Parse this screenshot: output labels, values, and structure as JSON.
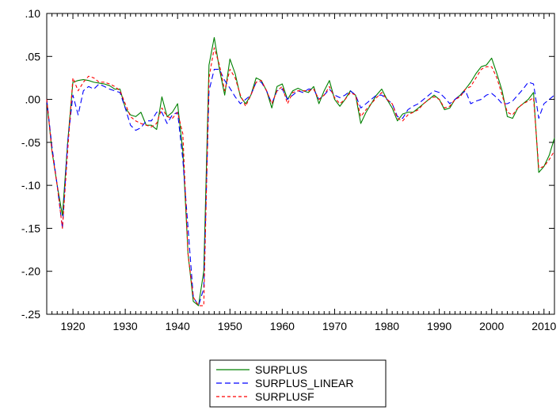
{
  "chart_data": {
    "type": "line",
    "xlim": [
      1915,
      2012
    ],
    "ylim": [
      -0.25,
      0.1
    ],
    "x_ticks": [
      1920,
      1930,
      1940,
      1950,
      1960,
      1970,
      1980,
      1990,
      2000,
      2010
    ],
    "x_tick_labels": [
      "1920",
      "1930",
      "1940",
      "1950",
      "1960",
      "1970",
      "1980",
      "1990",
      "2000",
      "2010"
    ],
    "y_ticks": [
      -0.25,
      -0.2,
      -0.15,
      -0.1,
      -0.05,
      0.0,
      0.05,
      0.1
    ],
    "y_tick_labels": [
      "-.25",
      "-.20",
      "-.15",
      "-.10",
      "-.05",
      ".00",
      ".05",
      ".10"
    ],
    "x": [
      1915,
      1916,
      1917,
      1918,
      1919,
      1920,
      1921,
      1922,
      1923,
      1924,
      1925,
      1926,
      1927,
      1928,
      1929,
      1930,
      1931,
      1932,
      1933,
      1934,
      1935,
      1936,
      1937,
      1938,
      1939,
      1940,
      1941,
      1942,
      1943,
      1944,
      1945,
      1946,
      1947,
      1948,
      1949,
      1950,
      1951,
      1952,
      1953,
      1954,
      1955,
      1956,
      1957,
      1958,
      1959,
      1960,
      1961,
      1962,
      1963,
      1964,
      1965,
      1966,
      1967,
      1968,
      1969,
      1970,
      1971,
      1972,
      1973,
      1974,
      1975,
      1976,
      1977,
      1978,
      1979,
      1980,
      1981,
      1982,
      1983,
      1984,
      1985,
      1986,
      1987,
      1988,
      1989,
      1990,
      1991,
      1992,
      1993,
      1994,
      1995,
      1996,
      1997,
      1998,
      1999,
      2000,
      2001,
      2002,
      2003,
      2004,
      2005,
      2006,
      2007,
      2008,
      2009,
      2010,
      2011,
      2012
    ],
    "series": [
      {
        "name": "SURPLUS",
        "color": "#008000",
        "dash": "",
        "values": [
          0.0,
          -0.06,
          -0.1,
          -0.135,
          -0.05,
          0.02,
          0.022,
          0.023,
          0.022,
          0.02,
          0.019,
          0.018,
          0.016,
          0.012,
          0.012,
          -0.01,
          -0.018,
          -0.02,
          -0.015,
          -0.03,
          -0.03,
          -0.035,
          0.003,
          -0.02,
          -0.015,
          -0.005,
          -0.06,
          -0.18,
          -0.235,
          -0.24,
          -0.2,
          0.04,
          0.072,
          0.035,
          0.005,
          0.047,
          0.03,
          0.003,
          -0.005,
          0.005,
          0.025,
          0.022,
          0.01,
          -0.01,
          0.015,
          0.018,
          0.0,
          0.01,
          0.013,
          0.01,
          0.008,
          0.015,
          -0.005,
          0.01,
          0.022,
          0.0,
          -0.008,
          0.0,
          0.01,
          0.005,
          -0.028,
          -0.015,
          -0.005,
          0.005,
          0.012,
          0.0,
          -0.01,
          -0.025,
          -0.017,
          -0.015,
          -0.015,
          -0.01,
          -0.005,
          0.0,
          0.005,
          0.0,
          -0.012,
          -0.01,
          0.0,
          0.005,
          0.012,
          0.02,
          0.03,
          0.038,
          0.04,
          0.048,
          0.03,
          0.01,
          -0.02,
          -0.022,
          -0.01,
          -0.005,
          0.0,
          0.008,
          -0.085,
          -0.078,
          -0.065,
          -0.045
        ]
      },
      {
        "name": "SURPLUS_LINEAR",
        "color": "#0000ff",
        "dash": "7,4",
        "values": [
          0.0,
          -0.055,
          -0.1,
          -0.15,
          -0.05,
          0.005,
          -0.018,
          0.01,
          0.015,
          0.012,
          0.018,
          0.015,
          0.012,
          0.01,
          0.008,
          -0.01,
          -0.03,
          -0.036,
          -0.033,
          -0.025,
          -0.025,
          -0.015,
          -0.015,
          -0.028,
          -0.018,
          -0.015,
          -0.07,
          -0.15,
          -0.23,
          -0.24,
          -0.22,
          0.01,
          0.035,
          0.035,
          0.022,
          0.013,
          0.003,
          -0.005,
          0.0,
          0.005,
          0.02,
          0.02,
          0.01,
          -0.005,
          0.01,
          0.012,
          0.0,
          0.005,
          0.01,
          0.008,
          0.012,
          0.012,
          0.0,
          0.005,
          0.012,
          0.005,
          0.002,
          0.005,
          0.01,
          0.005,
          -0.01,
          -0.005,
          0.0,
          0.005,
          0.005,
          0.0,
          -0.005,
          -0.02,
          -0.022,
          -0.012,
          -0.008,
          -0.005,
          0.0,
          0.005,
          0.01,
          0.008,
          0.002,
          -0.005,
          0.0,
          0.005,
          0.01,
          -0.005,
          -0.002,
          0.0,
          0.005,
          0.007,
          0.002,
          -0.005,
          -0.005,
          -0.002,
          0.005,
          0.012,
          0.02,
          0.018,
          -0.022,
          -0.005,
          0.0,
          0.005
        ]
      },
      {
        "name": "SURPLUSF",
        "color": "#ff0000",
        "dash": "4,3",
        "values": [
          0.0,
          -0.06,
          -0.1,
          -0.15,
          -0.06,
          0.025,
          0.01,
          0.02,
          0.027,
          0.025,
          0.02,
          0.02,
          0.018,
          0.015,
          0.01,
          -0.005,
          -0.02,
          -0.025,
          -0.028,
          -0.03,
          -0.032,
          -0.028,
          -0.01,
          -0.02,
          -0.022,
          -0.015,
          -0.04,
          -0.18,
          -0.23,
          -0.24,
          -0.24,
          0.025,
          0.06,
          0.04,
          0.01,
          0.035,
          0.025,
          0.005,
          -0.008,
          0.005,
          0.02,
          0.022,
          0.01,
          -0.005,
          0.01,
          0.015,
          -0.005,
          0.008,
          0.01,
          0.01,
          0.01,
          0.012,
          0.0,
          0.005,
          0.015,
          0.002,
          -0.005,
          0.0,
          0.008,
          0.005,
          -0.02,
          -0.012,
          -0.005,
          0.002,
          0.008,
          0.0,
          -0.005,
          -0.022,
          -0.025,
          -0.018,
          -0.015,
          -0.012,
          -0.005,
          0.0,
          0.003,
          0.0,
          -0.01,
          -0.008,
          0.0,
          0.003,
          0.012,
          0.015,
          0.025,
          0.035,
          0.038,
          0.038,
          0.025,
          0.005,
          -0.015,
          -0.018,
          -0.01,
          -0.005,
          -0.002,
          0.002,
          -0.08,
          -0.078,
          -0.07,
          -0.06
        ]
      }
    ],
    "grid": false,
    "legend_position": "bottom-center"
  }
}
